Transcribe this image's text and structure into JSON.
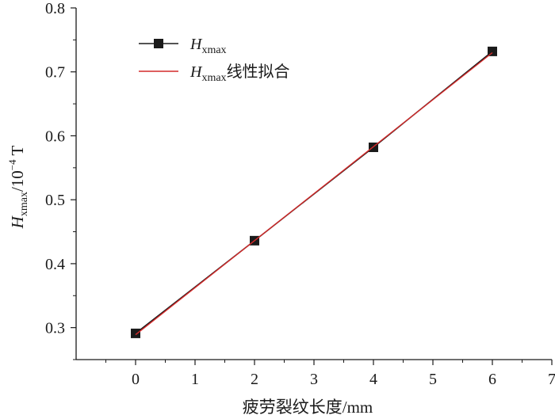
{
  "chart_data": {
    "type": "line",
    "x": [
      0,
      2,
      4,
      6
    ],
    "series": [
      {
        "name": "H_xmax",
        "label_base": "H",
        "label_sub": "xmax",
        "label_suffix": "",
        "values": [
          0.291,
          0.436,
          0.582,
          0.732
        ],
        "color": "#1a1a1a",
        "marker": "square"
      },
      {
        "name": "H_xmax线性拟合",
        "label_base": "H",
        "label_sub": "xmax",
        "label_suffix": "线性拟合",
        "values": [
          0.289,
          0.436,
          0.583,
          0.73
        ],
        "color": "#d42a2a",
        "marker": "none"
      }
    ],
    "xlabel": "疲劳裂纹长度/mm",
    "ylabel": {
      "base": "H",
      "sub": "xmax",
      "mid": "/10",
      "sup": "−4",
      "unit": " T"
    },
    "xlim": [
      -1,
      7
    ],
    "ylim": [
      0.25,
      0.8
    ],
    "xticks": [
      "0",
      "1",
      "2",
      "3",
      "4",
      "5",
      "6",
      "7"
    ],
    "yticks": [
      "0.3",
      "0.4",
      "0.5",
      "0.6",
      "0.7",
      "0.8"
    ],
    "grid": false,
    "legend": "top-left"
  }
}
